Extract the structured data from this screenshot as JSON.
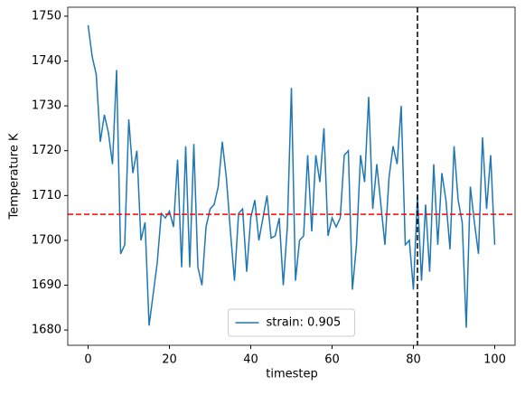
{
  "chart_data": {
    "type": "line",
    "xlabel": "timestep",
    "ylabel": "Temperature K",
    "x": [
      0,
      1,
      2,
      3,
      4,
      5,
      6,
      7,
      8,
      9,
      10,
      11,
      12,
      13,
      14,
      15,
      16,
      17,
      18,
      19,
      20,
      21,
      22,
      23,
      24,
      25,
      26,
      27,
      28,
      29,
      30,
      31,
      32,
      33,
      34,
      35,
      36,
      37,
      38,
      39,
      40,
      41,
      42,
      43,
      44,
      45,
      46,
      47,
      48,
      49,
      50,
      51,
      52,
      53,
      54,
      55,
      56,
      57,
      58,
      59,
      60,
      61,
      62,
      63,
      64,
      65,
      66,
      67,
      68,
      69,
      70,
      71,
      72,
      73,
      74,
      75,
      76,
      77,
      78,
      79,
      80,
      81,
      82,
      83,
      84,
      85,
      86,
      87,
      88,
      89,
      90,
      91,
      92,
      93,
      94,
      95,
      96,
      97,
      98,
      99,
      100
    ],
    "series": [
      {
        "name": "strain: 0.905",
        "color": "#1f77b4",
        "values": [
          1748,
          1741,
          1737,
          1722,
          1728,
          1724,
          1717,
          1738,
          1697,
          1699,
          1727,
          1715,
          1720,
          1700,
          1704,
          1681,
          1688,
          1695,
          1706,
          1705,
          1706.5,
          1703,
          1718,
          1694,
          1721,
          1694,
          1721.5,
          1694,
          1690,
          1703,
          1707,
          1708,
          1712,
          1722,
          1714,
          1702,
          1691,
          1706,
          1707,
          1693,
          1705,
          1709,
          1700,
          1705,
          1710,
          1700.5,
          1701,
          1705,
          1690,
          1703,
          1734,
          1691,
          1700,
          1701,
          1719,
          1702,
          1719,
          1713,
          1725,
          1701,
          1705,
          1703,
          1705,
          1719,
          1720,
          1689,
          1699,
          1719,
          1713,
          1732,
          1707,
          1717,
          1708,
          1699,
          1714,
          1721,
          1717,
          1730,
          1699,
          1700,
          1689,
          1710,
          1691,
          1708,
          1693,
          1717,
          1699,
          1715,
          1709,
          1698,
          1721,
          1709,
          1704,
          1680.5,
          1712,
          1704,
          1697,
          1723,
          1707,
          1719,
          1699
        ]
      }
    ],
    "hline": {
      "y": 1705.8,
      "color": "#ff0000"
    },
    "vline": {
      "x": 81,
      "color": "#000000"
    },
    "xlim": [
      -5,
      105
    ],
    "ylim": [
      1676.6,
      1752
    ],
    "xticks": [
      0,
      20,
      40,
      60,
      80,
      100
    ],
    "yticks": [
      1680,
      1690,
      1700,
      1710,
      1720,
      1730,
      1740,
      1750
    ],
    "legend": "lower center"
  }
}
